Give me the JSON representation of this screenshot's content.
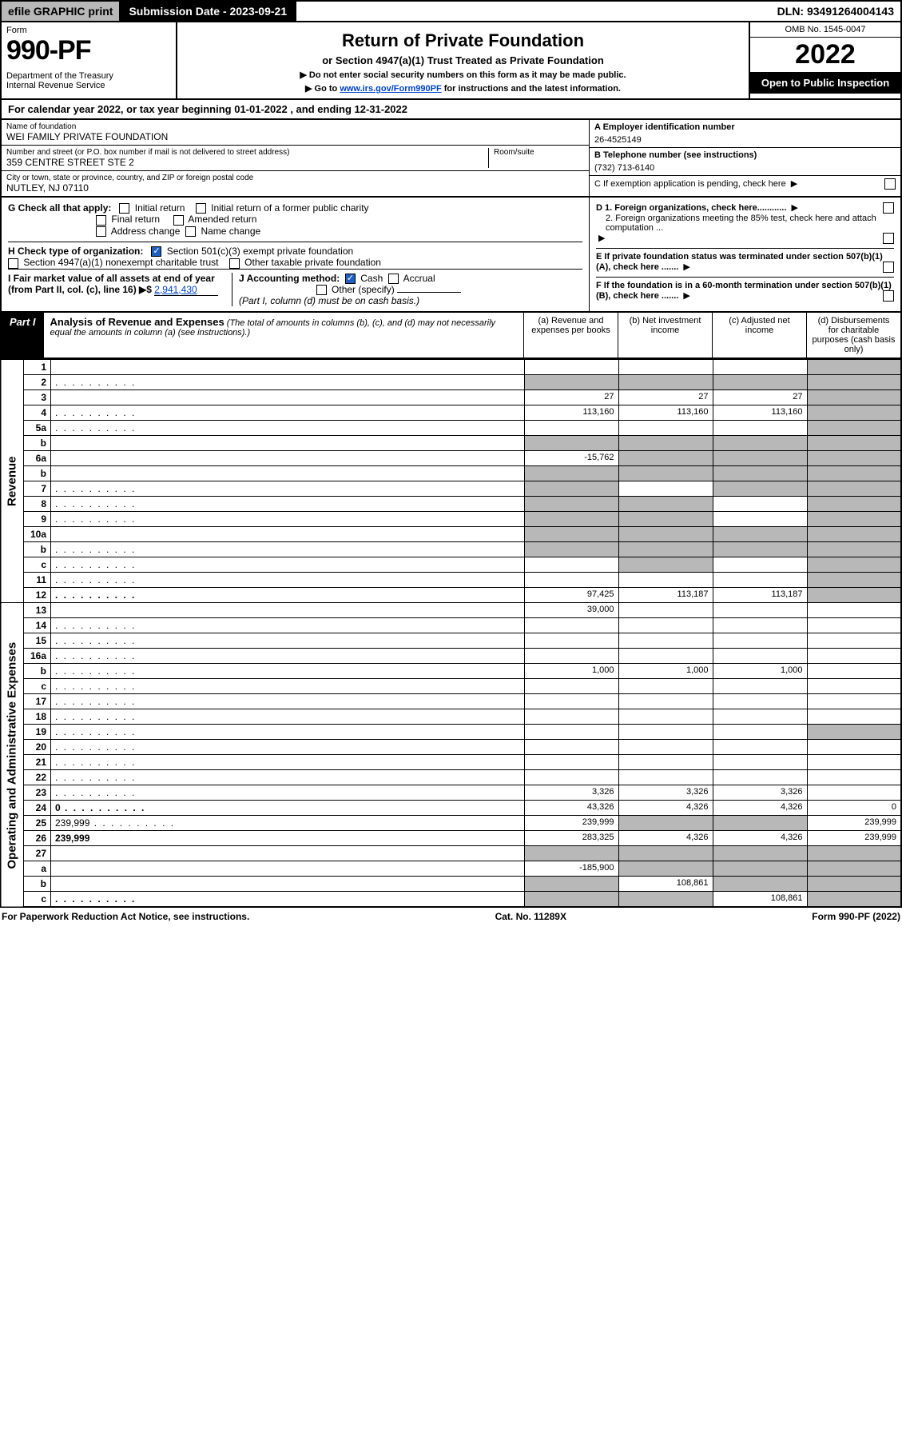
{
  "topbar": {
    "efile": "efile GRAPHIC print",
    "subdate_label": "Submission Date - 2023-09-21",
    "dln": "DLN: 93491264004143"
  },
  "header": {
    "form_word": "Form",
    "form_no": "990-PF",
    "dept": "Department of the Treasury\nInternal Revenue Service",
    "title": "Return of Private Foundation",
    "subtitle": "or Section 4947(a)(1) Trust Treated as Private Foundation",
    "note1": "▶ Do not enter social security numbers on this form as it may be made public.",
    "note2_pre": "▶ Go to ",
    "note2_link": "www.irs.gov/Form990PF",
    "note2_post": " for instructions and the latest information.",
    "omb": "OMB No. 1545-0047",
    "year": "2022",
    "badge": "Open to Public Inspection"
  },
  "calendar": "For calendar year 2022, or tax year beginning 01-01-2022             , and ending 12-31-2022",
  "info": {
    "name_label": "Name of foundation",
    "name": "WEI FAMILY PRIVATE FOUNDATION",
    "addr_label": "Number and street (or P.O. box number if mail is not delivered to street address)",
    "addr": "359 CENTRE STREET STE 2",
    "room_label": "Room/suite",
    "city_label": "City or town, state or province, country, and ZIP or foreign postal code",
    "city": "NUTLEY, NJ  07110",
    "a_label": "A Employer identification number",
    "a_val": "26-4525149",
    "b_label": "B Telephone number (see instructions)",
    "b_val": "(732) 713-6140",
    "c_label": "C If exemption application is pending, check here"
  },
  "checks": {
    "g": "G Check all that apply:",
    "g_opts": [
      "Initial return",
      "Initial return of a former public charity",
      "Final return",
      "Amended return",
      "Address change",
      "Name change"
    ],
    "h": "H Check type of organization:",
    "h1": "Section 501(c)(3) exempt private foundation",
    "h2": "Section 4947(a)(1) nonexempt charitable trust",
    "h3": "Other taxable private foundation",
    "i_label": "I Fair market value of all assets at end of year (from Part II, col. (c), line 16) ▶$",
    "i_val": "2,941,430",
    "j": "J Accounting method:",
    "j_opts": [
      "Cash",
      "Accrual",
      "Other (specify)"
    ],
    "j_note": "(Part I, column (d) must be on cash basis.)",
    "d1": "D 1. Foreign organizations, check here............",
    "d2": "2. Foreign organizations meeting the 85% test, check here and attach computation ...",
    "e": "E If private foundation status was terminated under section 507(b)(1)(A), check here .......",
    "f": "F If the foundation is in a 60-month termination under section 507(b)(1)(B), check here ......."
  },
  "part1": {
    "label": "Part I",
    "title": "Analysis of Revenue and Expenses",
    "note": "(The total of amounts in columns (b), (c), and (d) may not necessarily equal the amounts in column (a) (see instructions).)",
    "cols": {
      "a": "(a)   Revenue and expenses per books",
      "b": "(b)   Net investment income",
      "c": "(c)   Adjusted net income",
      "d": "(d)   Disbursements for charitable purposes (cash basis only)"
    }
  },
  "side": {
    "revenue": "Revenue",
    "expenses": "Operating and Administrative Expenses"
  },
  "rows": [
    {
      "n": "1",
      "d": "",
      "a": "",
      "b": "",
      "c": "",
      "shadeD": true
    },
    {
      "n": "2",
      "d": "",
      "a": "",
      "b": "",
      "c": "",
      "shadeAll": true,
      "dots": true
    },
    {
      "n": "3",
      "d": "",
      "a": "27",
      "b": "27",
      "c": "27",
      "shadeD": true
    },
    {
      "n": "4",
      "d": "",
      "a": "113,160",
      "b": "113,160",
      "c": "113,160",
      "shadeD": true,
      "dots": true
    },
    {
      "n": "5a",
      "d": "",
      "a": "",
      "b": "",
      "c": "",
      "shadeD": true,
      "dots": true
    },
    {
      "n": "b",
      "d": "",
      "a": "",
      "b": "",
      "c": "",
      "shadeAll": true
    },
    {
      "n": "6a",
      "d": "",
      "a": "-15,762",
      "b": "",
      "c": "",
      "shadeBCD": true
    },
    {
      "n": "b",
      "d": "",
      "a": "",
      "b": "",
      "c": "",
      "shadeAll": true
    },
    {
      "n": "7",
      "d": "",
      "a": "",
      "b": "",
      "c": "",
      "shadeA": true,
      "shadeCD": true,
      "dots": true
    },
    {
      "n": "8",
      "d": "",
      "a": "",
      "b": "",
      "c": "",
      "shadeAB": true,
      "shadeD": true,
      "dots": true
    },
    {
      "n": "9",
      "d": "",
      "a": "",
      "b": "",
      "c": "",
      "shadeAB": true,
      "shadeD": true,
      "dots": true
    },
    {
      "n": "10a",
      "d": "",
      "a": "",
      "b": "",
      "c": "",
      "shadeAll": true
    },
    {
      "n": "b",
      "d": "",
      "a": "",
      "b": "",
      "c": "",
      "shadeAll": true,
      "dots": true
    },
    {
      "n": "c",
      "d": "",
      "a": "",
      "b": "",
      "c": "",
      "shadeB": true,
      "shadeD": true,
      "dots": true
    },
    {
      "n": "11",
      "d": "",
      "a": "",
      "b": "",
      "c": "",
      "shadeD": true,
      "dots": true
    },
    {
      "n": "12",
      "d": "",
      "a": "97,425",
      "b": "113,187",
      "c": "113,187",
      "bold": true,
      "shadeD": true,
      "dots": true
    },
    {
      "n": "13",
      "d": "",
      "a": "39,000",
      "b": "",
      "c": ""
    },
    {
      "n": "14",
      "d": "",
      "a": "",
      "b": "",
      "c": "",
      "dots": true
    },
    {
      "n": "15",
      "d": "",
      "a": "",
      "b": "",
      "c": "",
      "dots": true
    },
    {
      "n": "16a",
      "d": "",
      "a": "",
      "b": "",
      "c": "",
      "dots": true
    },
    {
      "n": "b",
      "d": "",
      "a": "1,000",
      "b": "1,000",
      "c": "1,000",
      "dots": true
    },
    {
      "n": "c",
      "d": "",
      "a": "",
      "b": "",
      "c": "",
      "dots": true
    },
    {
      "n": "17",
      "d": "",
      "a": "",
      "b": "",
      "c": "",
      "dots": true
    },
    {
      "n": "18",
      "d": "",
      "a": "",
      "b": "",
      "c": "",
      "dots": true
    },
    {
      "n": "19",
      "d": "",
      "a": "",
      "b": "",
      "c": "",
      "shadeD": true,
      "dots": true
    },
    {
      "n": "20",
      "d": "",
      "a": "",
      "b": "",
      "c": "",
      "dots": true
    },
    {
      "n": "21",
      "d": "",
      "a": "",
      "b": "",
      "c": "",
      "dots": true
    },
    {
      "n": "22",
      "d": "",
      "a": "",
      "b": "",
      "c": "",
      "dots": true
    },
    {
      "n": "23",
      "d": "",
      "a": "3,326",
      "b": "3,326",
      "c": "3,326",
      "dots": true
    },
    {
      "n": "24",
      "d": "0",
      "a": "43,326",
      "b": "4,326",
      "c": "4,326",
      "bold": true,
      "dots": true
    },
    {
      "n": "25",
      "d": "239,999",
      "a": "239,999",
      "b": "",
      "c": "",
      "shadeBC": true,
      "dots": true
    },
    {
      "n": "26",
      "d": "239,999",
      "a": "283,325",
      "b": "4,326",
      "c": "4,326",
      "bold": true
    },
    {
      "n": "27",
      "d": "",
      "a": "",
      "b": "",
      "c": "",
      "shadeAll": true
    },
    {
      "n": "a",
      "d": "",
      "a": "-185,900",
      "b": "",
      "c": "",
      "bold": true,
      "shadeBCD": true
    },
    {
      "n": "b",
      "d": "",
      "a": "",
      "b": "108,861",
      "c": "",
      "bold": true,
      "shadeA": true,
      "shadeCD": true
    },
    {
      "n": "c",
      "d": "",
      "a": "",
      "b": "",
      "c": "108,861",
      "bold": true,
      "shadeAB": true,
      "shadeD": true,
      "dots": true
    }
  ],
  "footer": {
    "left": "For Paperwork Reduction Act Notice, see instructions.",
    "mid": "Cat. No. 11289X",
    "right": "Form 990-PF (2022)"
  }
}
